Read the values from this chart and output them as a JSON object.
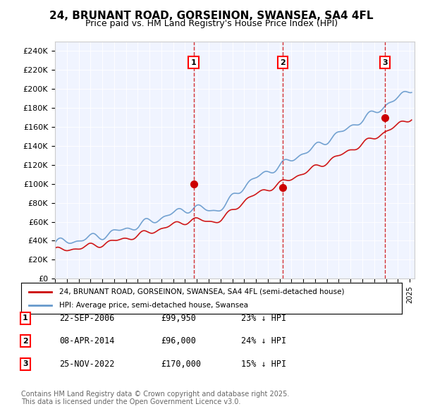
{
  "title": "24, BRUNANT ROAD, GORSEINON, SWANSEA, SA4 4FL",
  "subtitle": "Price paid vs. HM Land Registry's House Price Index (HPI)",
  "ylabel": "",
  "ylim": [
    0,
    250000
  ],
  "yticks": [
    0,
    20000,
    40000,
    60000,
    80000,
    100000,
    120000,
    140000,
    160000,
    180000,
    200000,
    220000,
    240000
  ],
  "ytick_labels": [
    "£0",
    "£20K",
    "£40K",
    "£60K",
    "£80K",
    "£100K",
    "£120K",
    "£140K",
    "£160K",
    "£180K",
    "£200K",
    "£220K",
    "£240K"
  ],
  "sale_dates": [
    "2006-09-22",
    "2014-04-08",
    "2022-11-25"
  ],
  "sale_prices": [
    99950,
    96000,
    170000
  ],
  "sale_labels": [
    "1",
    "2",
    "3"
  ],
  "legend_red": "24, BRUNANT ROAD, GORSEINON, SWANSEA, SA4 4FL (semi-detached house)",
  "legend_blue": "HPI: Average price, semi-detached house, Swansea",
  "table_rows": [
    [
      "1",
      "22-SEP-2006",
      "£99,950",
      "23% ↓ HPI"
    ],
    [
      "2",
      "08-APR-2014",
      "£96,000",
      "24% ↓ HPI"
    ],
    [
      "3",
      "25-NOV-2022",
      "£170,000",
      "15% ↓ HPI"
    ]
  ],
  "footer": "Contains HM Land Registry data © Crown copyright and database right 2025.\nThis data is licensed under the Open Government Licence v3.0.",
  "bg_color": "#f0f4ff",
  "red_color": "#cc0000",
  "blue_color": "#6699cc",
  "dashed_color": "#cc0000"
}
